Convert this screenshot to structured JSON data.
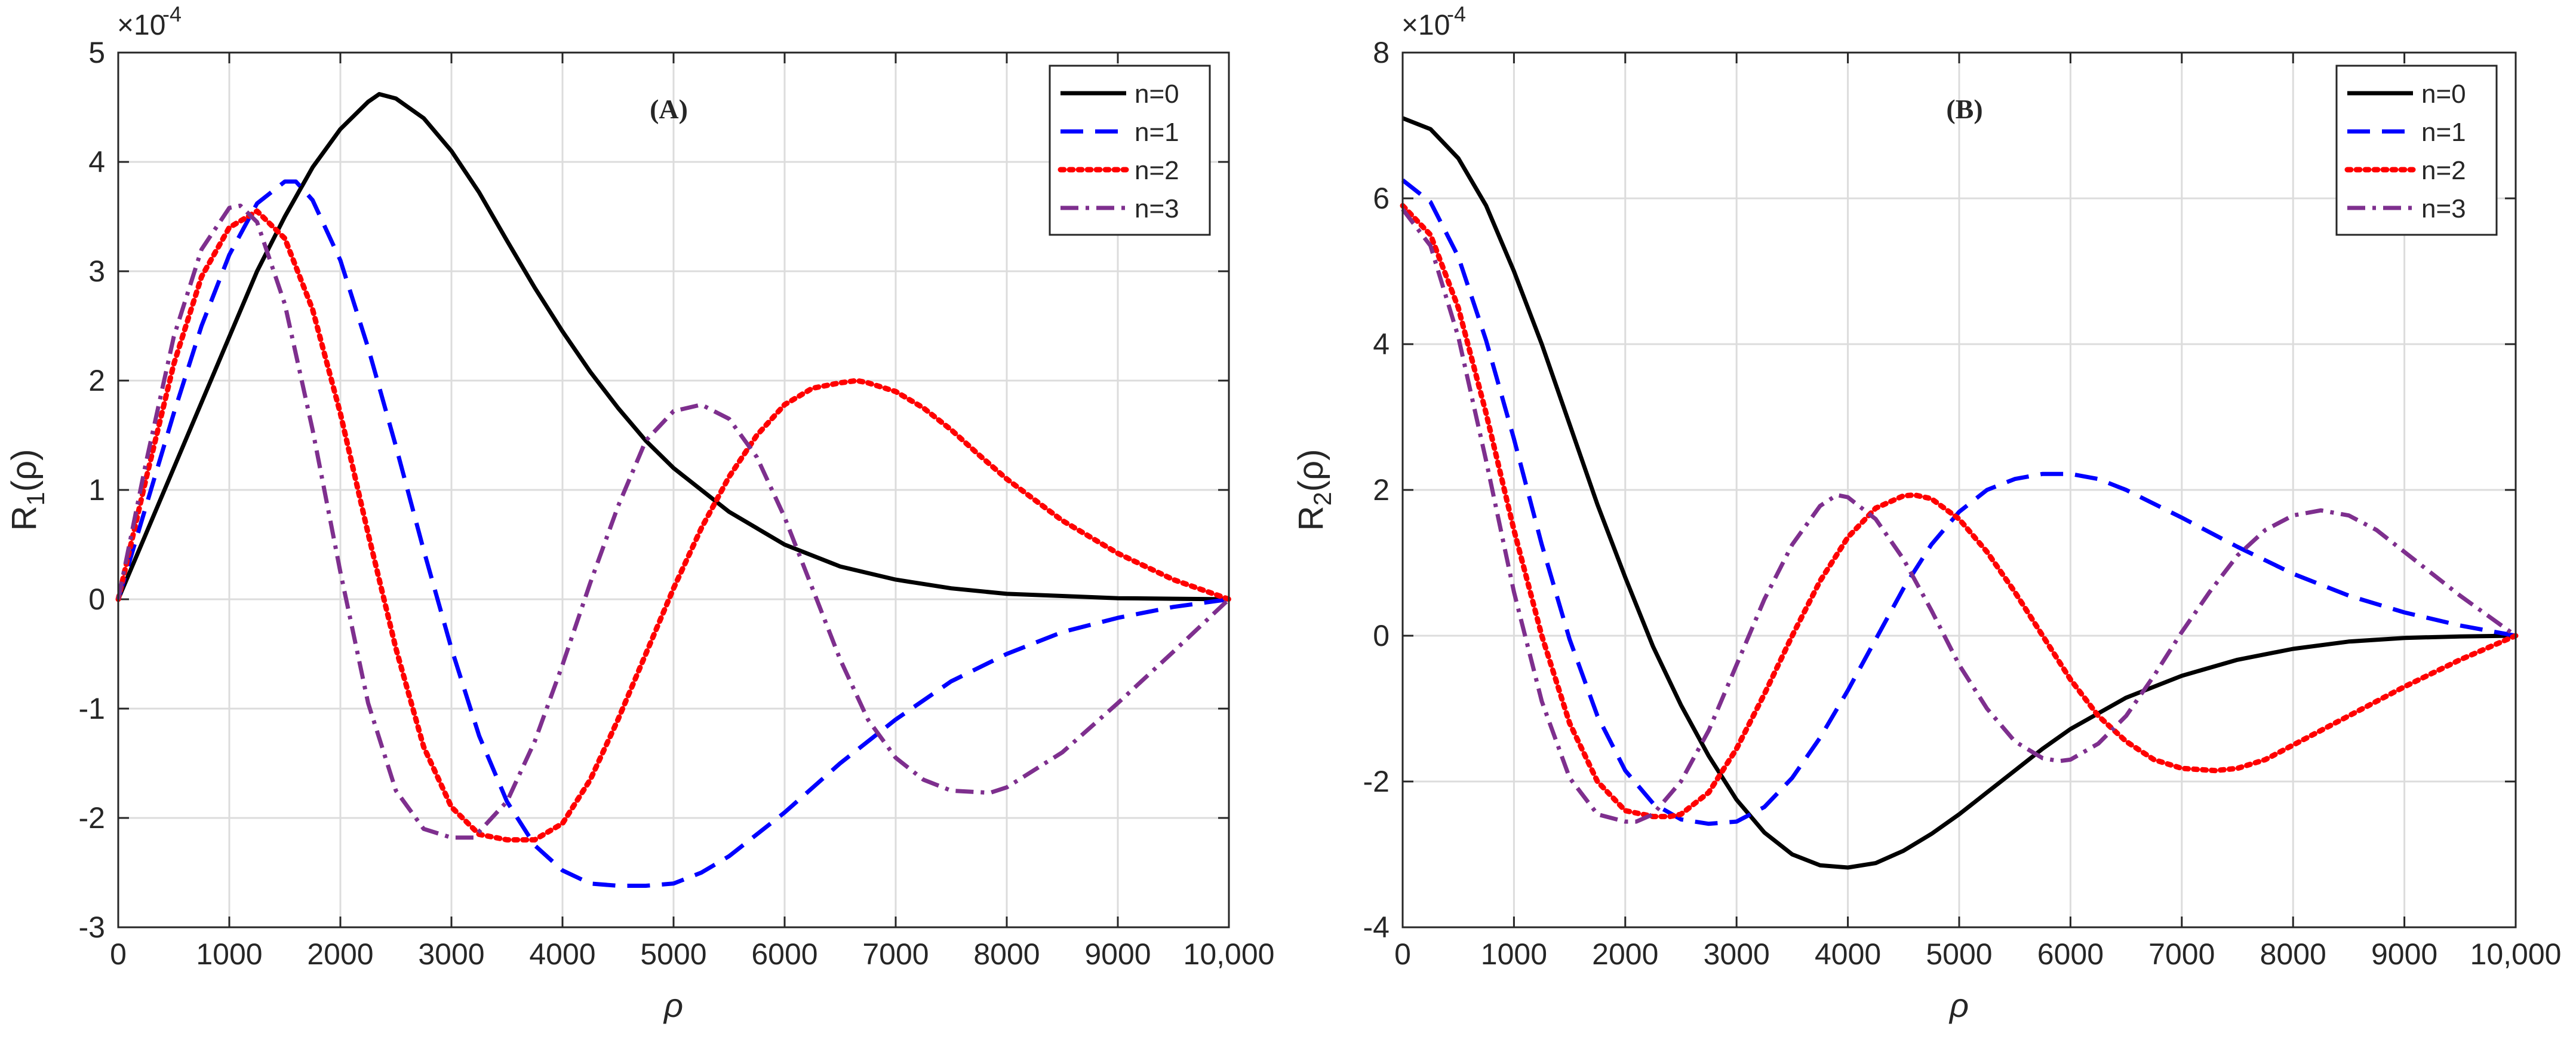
{
  "chart_data": [
    {
      "type": "line",
      "panel_label": "(A)",
      "title": "",
      "xlabel": "ρ",
      "ylabel_main": "R",
      "ylabel_sub": "1",
      "ylabel_tail": "(ρ)",
      "exponent_label": "×10",
      "exponent_power": "-4",
      "xlim": [
        0,
        10000
      ],
      "ylim": [
        -3,
        5
      ],
      "xticks": [
        0,
        1000,
        2000,
        3000,
        4000,
        5000,
        6000,
        7000,
        8000,
        9000,
        10000
      ],
      "xtick_labels": [
        "0",
        "1000",
        "2000",
        "3000",
        "4000",
        "5000",
        "6000",
        "7000",
        "8000",
        "9000",
        "10,000"
      ],
      "yticks": [
        -3,
        -2,
        -1,
        0,
        1,
        2,
        3,
        4,
        5
      ],
      "ytick_labels": [
        "-3",
        "-2",
        "-1",
        "0",
        "1",
        "2",
        "3",
        "4",
        "5"
      ],
      "grid": true,
      "legend_position": "top-right",
      "series": [
        {
          "name": "n=0",
          "color": "#000000",
          "dash": "solid",
          "x": [
            0,
            250,
            500,
            750,
            1000,
            1250,
            1500,
            1750,
            2000,
            2250,
            2350,
            2500,
            2750,
            3000,
            3250,
            3500,
            3750,
            4000,
            4250,
            4500,
            4750,
            5000,
            5500,
            6000,
            6500,
            7000,
            7500,
            8000,
            8500,
            9000,
            9500,
            10000
          ],
          "y": [
            0,
            0.6,
            1.2,
            1.8,
            2.4,
            3.0,
            3.5,
            3.95,
            4.3,
            4.55,
            4.62,
            4.58,
            4.4,
            4.1,
            3.72,
            3.28,
            2.85,
            2.45,
            2.08,
            1.75,
            1.45,
            1.2,
            0.8,
            0.5,
            0.3,
            0.18,
            0.1,
            0.05,
            0.03,
            0.01,
            0.005,
            0
          ]
        },
        {
          "name": "n=1",
          "color": "#0000ff",
          "dash": "long-dash",
          "x": [
            0,
            250,
            500,
            750,
            1000,
            1250,
            1500,
            1600,
            1750,
            2000,
            2250,
            2500,
            2750,
            3000,
            3250,
            3500,
            3750,
            4000,
            4250,
            4500,
            4750,
            5000,
            5250,
            5500,
            6000,
            6500,
            7000,
            7500,
            8000,
            8500,
            9000,
            9500,
            10000
          ],
          "y": [
            0,
            0.85,
            1.7,
            2.5,
            3.15,
            3.62,
            3.82,
            3.82,
            3.65,
            3.1,
            2.3,
            1.4,
            0.45,
            -0.45,
            -1.25,
            -1.85,
            -2.25,
            -2.48,
            -2.6,
            -2.62,
            -2.62,
            -2.6,
            -2.5,
            -2.35,
            -1.95,
            -1.5,
            -1.1,
            -0.75,
            -0.5,
            -0.3,
            -0.17,
            -0.07,
            0
          ]
        },
        {
          "name": "n=2",
          "color": "#ff0000",
          "dash": "dotted",
          "x": [
            0,
            250,
            500,
            750,
            1000,
            1250,
            1500,
            1750,
            2000,
            2250,
            2500,
            2750,
            3000,
            3250,
            3500,
            3750,
            4000,
            4250,
            4500,
            4750,
            5000,
            5250,
            5500,
            5750,
            6000,
            6250,
            6500,
            6650,
            6750,
            7000,
            7250,
            7500,
            7750,
            8000,
            8500,
            9000,
            9500,
            10000
          ],
          "y": [
            0,
            1.1,
            2.15,
            2.95,
            3.4,
            3.55,
            3.3,
            2.65,
            1.7,
            0.6,
            -0.45,
            -1.35,
            -1.9,
            -2.15,
            -2.2,
            -2.2,
            -2.05,
            -1.65,
            -1.1,
            -0.5,
            0.1,
            0.65,
            1.12,
            1.5,
            1.78,
            1.93,
            1.98,
            2.0,
            1.98,
            1.9,
            1.75,
            1.55,
            1.32,
            1.1,
            0.72,
            0.42,
            0.18,
            0
          ]
        },
        {
          "name": "n=3",
          "color": "#7e2f8e",
          "dash": "dash-dot",
          "x": [
            0,
            250,
            500,
            750,
            1000,
            1100,
            1250,
            1500,
            1750,
            2000,
            2250,
            2500,
            2750,
            3000,
            3200,
            3500,
            3750,
            4000,
            4250,
            4500,
            4750,
            5000,
            5250,
            5500,
            5750,
            6000,
            6250,
            6500,
            6750,
            7000,
            7250,
            7500,
            7850,
            8000,
            8500,
            9000,
            9500,
            10000
          ],
          "y": [
            0,
            1.25,
            2.4,
            3.2,
            3.58,
            3.6,
            3.45,
            2.7,
            1.55,
            0.25,
            -0.95,
            -1.75,
            -2.1,
            -2.18,
            -2.18,
            -1.85,
            -1.3,
            -0.6,
            0.15,
            0.85,
            1.45,
            1.72,
            1.78,
            1.65,
            1.3,
            0.75,
            0.1,
            -0.55,
            -1.1,
            -1.45,
            -1.65,
            -1.75,
            -1.77,
            -1.72,
            -1.4,
            -0.95,
            -0.48,
            0
          ]
        }
      ]
    },
    {
      "type": "line",
      "panel_label": "(B)",
      "title": "",
      "xlabel": "ρ",
      "ylabel_main": "R",
      "ylabel_sub": "2",
      "ylabel_tail": "(ρ)",
      "exponent_label": "×10",
      "exponent_power": "-4",
      "xlim": [
        0,
        10000
      ],
      "ylim": [
        -4,
        8
      ],
      "xticks": [
        0,
        1000,
        2000,
        3000,
        4000,
        5000,
        6000,
        7000,
        8000,
        9000,
        10000
      ],
      "xtick_labels": [
        "0",
        "1000",
        "2000",
        "3000",
        "4000",
        "5000",
        "6000",
        "7000",
        "8000",
        "9000",
        "10,000"
      ],
      "yticks": [
        -4,
        -2,
        0,
        2,
        4,
        6,
        8
      ],
      "ytick_labels": [
        "-4",
        "-2",
        "0",
        "2",
        "4",
        "6",
        "8"
      ],
      "grid": true,
      "legend_position": "top-right",
      "series": [
        {
          "name": "n=0",
          "color": "#000000",
          "dash": "solid",
          "x": [
            0,
            250,
            500,
            750,
            1000,
            1250,
            1500,
            1750,
            2000,
            2250,
            2500,
            2750,
            3000,
            3250,
            3500,
            3750,
            4000,
            4250,
            4500,
            4750,
            5000,
            5250,
            5500,
            5750,
            6000,
            6500,
            7000,
            7500,
            8000,
            8500,
            9000,
            9500,
            10000
          ],
          "y": [
            7.1,
            6.95,
            6.55,
            5.9,
            5.0,
            4.0,
            2.9,
            1.8,
            0.8,
            -0.15,
            -0.95,
            -1.65,
            -2.25,
            -2.7,
            -3.0,
            -3.15,
            -3.18,
            -3.12,
            -2.95,
            -2.72,
            -2.45,
            -2.15,
            -1.85,
            -1.55,
            -1.28,
            -0.85,
            -0.55,
            -0.33,
            -0.18,
            -0.08,
            -0.03,
            -0.01,
            0
          ]
        },
        {
          "name": "n=1",
          "color": "#0000ff",
          "dash": "long-dash",
          "x": [
            0,
            250,
            500,
            750,
            1000,
            1250,
            1500,
            1750,
            2000,
            2250,
            2500,
            2750,
            3000,
            3250,
            3500,
            3750,
            4000,
            4250,
            4500,
            4750,
            5000,
            5250,
            5500,
            5750,
            6000,
            6250,
            6500,
            7000,
            7500,
            8000,
            8500,
            9000,
            9500,
            10000
          ],
          "y": [
            6.25,
            5.95,
            5.2,
            4.05,
            2.7,
            1.25,
            -0.05,
            -1.1,
            -1.85,
            -2.3,
            -2.52,
            -2.58,
            -2.55,
            -2.35,
            -1.95,
            -1.4,
            -0.75,
            -0.05,
            0.65,
            1.25,
            1.7,
            2.0,
            2.15,
            2.22,
            2.22,
            2.15,
            2.0,
            1.62,
            1.22,
            0.85,
            0.55,
            0.32,
            0.14,
            0
          ]
        },
        {
          "name": "n=2",
          "color": "#ff0000",
          "dash": "dotted",
          "x": [
            0,
            250,
            500,
            750,
            1000,
            1250,
            1500,
            1750,
            2000,
            2250,
            2400,
            2500,
            2750,
            3000,
            3250,
            3500,
            3750,
            4000,
            4250,
            4500,
            4600,
            4750,
            5000,
            5250,
            5500,
            5750,
            6000,
            6250,
            6500,
            6750,
            7000,
            7300,
            7500,
            7750,
            8000,
            8500,
            9000,
            9500,
            10000
          ],
          "y": [
            5.9,
            5.5,
            4.5,
            3.05,
            1.45,
            0.0,
            -1.2,
            -2.0,
            -2.4,
            -2.48,
            -2.48,
            -2.45,
            -2.15,
            -1.55,
            -0.8,
            0.0,
            0.75,
            1.35,
            1.75,
            1.92,
            1.93,
            1.88,
            1.6,
            1.15,
            0.6,
            0.0,
            -0.6,
            -1.1,
            -1.45,
            -1.7,
            -1.82,
            -1.85,
            -1.82,
            -1.7,
            -1.5,
            -1.1,
            -0.7,
            -0.33,
            0
          ]
        },
        {
          "name": "n=3",
          "color": "#7e2f8e",
          "dash": "dash-dot",
          "x": [
            0,
            250,
            500,
            750,
            1000,
            1250,
            1500,
            1750,
            2000,
            2100,
            2250,
            2500,
            2750,
            3000,
            3250,
            3500,
            3750,
            3900,
            4000,
            4250,
            4500,
            4750,
            5000,
            5250,
            5500,
            5750,
            5900,
            6000,
            6250,
            6500,
            6750,
            7000,
            7250,
            7500,
            7750,
            8000,
            8250,
            8500,
            8750,
            9000,
            9500,
            10000
          ],
          "y": [
            5.85,
            5.35,
            4.1,
            2.4,
            0.6,
            -0.9,
            -1.95,
            -2.45,
            -2.55,
            -2.55,
            -2.45,
            -2.0,
            -1.3,
            -0.4,
            0.5,
            1.25,
            1.78,
            1.93,
            1.9,
            1.6,
            1.05,
            0.35,
            -0.4,
            -1.0,
            -1.45,
            -1.68,
            -1.72,
            -1.7,
            -1.48,
            -1.1,
            -0.55,
            0.05,
            0.6,
            1.1,
            1.45,
            1.65,
            1.72,
            1.65,
            1.45,
            1.15,
            0.55,
            0
          ]
        }
      ]
    }
  ]
}
